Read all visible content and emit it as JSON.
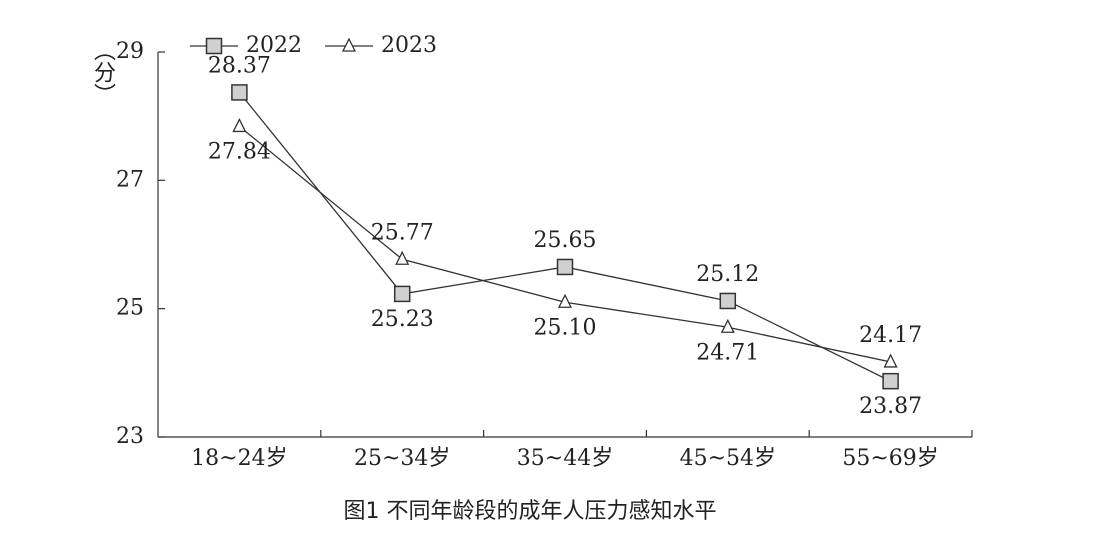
{
  "chart_data": {
    "type": "line",
    "title": "图1 不同年龄段的成年人压力感知水平",
    "y_label": "（分）",
    "categories": [
      "18~24岁",
      "25~34岁",
      "35~44岁",
      "45~54岁",
      "55~69岁"
    ],
    "series": [
      {
        "name": "2022",
        "color": "#333333",
        "marker": "square",
        "values": [
          28.37,
          25.23,
          25.65,
          25.12,
          23.87
        ],
        "value_labels": [
          "28.37",
          "25.23",
          "25.65",
          "25.12",
          "23.87"
        ]
      },
      {
        "name": "2023",
        "color": "#333333",
        "marker": "triangle",
        "values": [
          27.84,
          25.77,
          25.1,
          24.71,
          24.17
        ],
        "value_labels": [
          "27.84",
          "25.77",
          "25.10",
          "24.71",
          "24.17"
        ]
      }
    ],
    "ylim": [
      23,
      29
    ],
    "yticks": [
      23,
      25,
      27,
      29
    ],
    "grid": false
  }
}
